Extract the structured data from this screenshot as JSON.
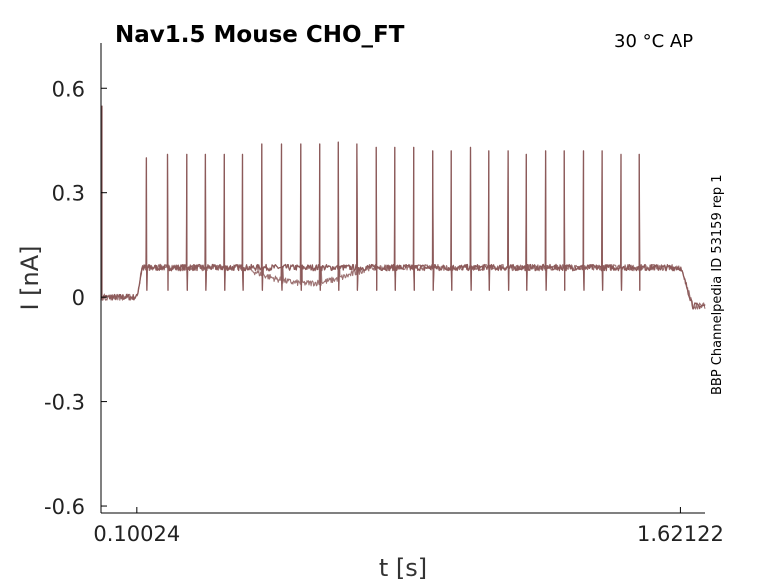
{
  "chart_data": {
    "type": "line",
    "title": "Nav1.5  Mouse  CHO_FT",
    "condition": "30 °C  AP",
    "side_note": "BBP Channelpedia ID 53159 rep 1",
    "xlabel": "t [s]",
    "ylabel": "I [nA]",
    "x_ticks": [
      {
        "value": 0.10024,
        "label": "0.10024"
      },
      {
        "value": 1.62122,
        "label": "1.62122"
      }
    ],
    "y_ticks": [
      {
        "value": 0.6,
        "label": "0.6"
      },
      {
        "value": 0.3,
        "label": "0.3"
      },
      {
        "value": 0,
        "label": "0"
      },
      {
        "value": -0.3,
        "label": "-0.3"
      },
      {
        "value": -0.6,
        "label": "-0.6"
      }
    ],
    "xlim": [
      0.0,
      1.69
    ],
    "ylim": [
      -0.62,
      0.73
    ],
    "grid": false,
    "line_color": "#8c5a5a",
    "stim_window": [
      0.10024,
      1.62122
    ],
    "baseline_before": 0.0,
    "plateau": 0.085,
    "baseline_after": -0.025,
    "spike_times": [
      0.127,
      0.186,
      0.24,
      0.292,
      0.345,
      0.396,
      0.45,
      0.505,
      0.559,
      0.612,
      0.664,
      0.716,
      0.77,
      0.822,
      0.875,
      0.928,
      0.98,
      1.034,
      1.085,
      1.139,
      1.19,
      1.244,
      1.296,
      1.35,
      1.402,
      1.455,
      1.506
    ],
    "spike_peaks": [
      0.4,
      0.41,
      0.41,
      0.41,
      0.41,
      0.41,
      0.44,
      0.44,
      0.44,
      0.44,
      0.445,
      0.44,
      0.43,
      0.43,
      0.43,
      0.42,
      0.42,
      0.43,
      0.42,
      0.42,
      0.41,
      0.42,
      0.42,
      0.42,
      0.42,
      0.41,
      0.41
    ]
  }
}
